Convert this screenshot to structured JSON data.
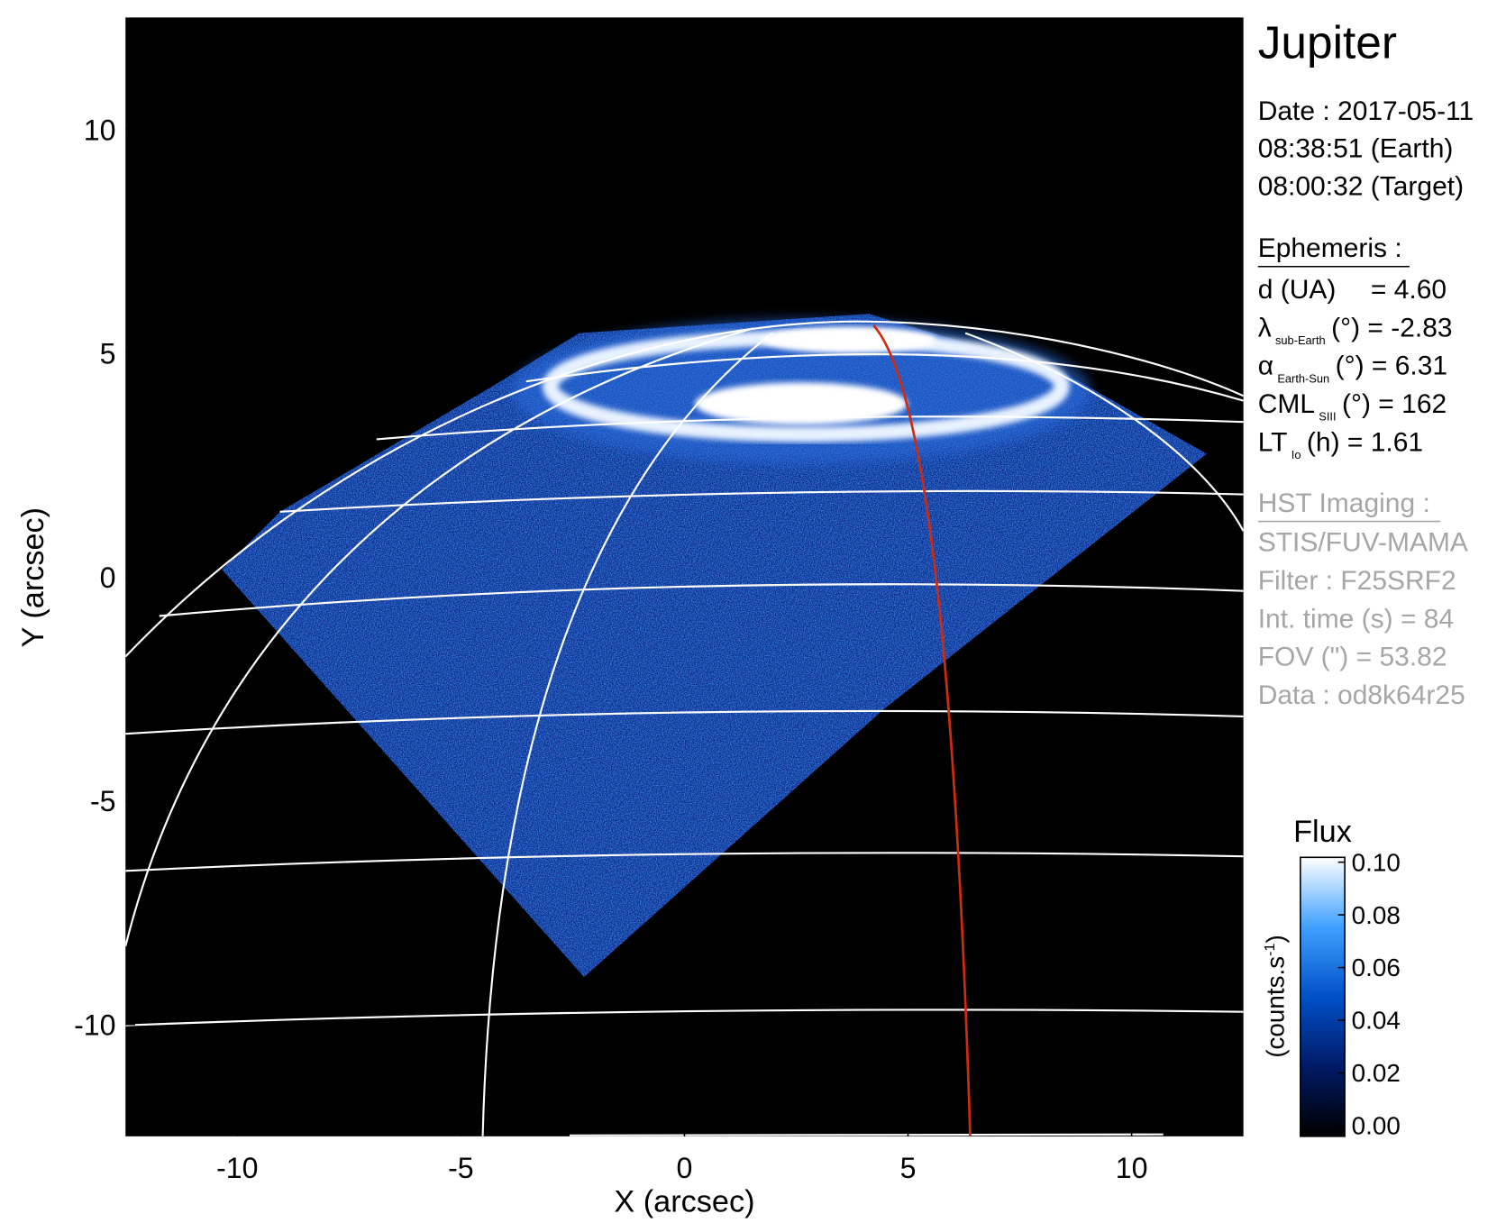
{
  "chart_data": {
    "type": "image",
    "title": "Jupiter",
    "x_label": "X (arcsec)",
    "y_label": "Y (arcsec)",
    "xlim": [
      -12.5,
      12.5
    ],
    "ylim": [
      -12.5,
      12.5
    ],
    "xticks": [
      -10,
      -5,
      0,
      5,
      10
    ],
    "yticks": [
      -10,
      -5,
      0,
      5,
      10
    ],
    "colorbar": {
      "label": "Flux",
      "unit_main": "(counts.s",
      "unit_sup": "-1",
      "unit_end": ")",
      "clim": [
        0,
        0.1
      ],
      "colors": [
        "#000000",
        "#001a66",
        "#0050c8",
        "#3fa0ff",
        "#ffffff"
      ],
      "ticks": [
        {
          "value": 0,
          "label": "0.00"
        },
        {
          "value": 0.02,
          "label": "0.02"
        },
        {
          "value": 0.04,
          "label": "0.04"
        },
        {
          "value": 0.06,
          "label": "0.06"
        },
        {
          "value": 0.08,
          "label": "0.08"
        },
        {
          "value": 0.1,
          "label": "0.10"
        }
      ]
    }
  },
  "info": {
    "date": "Date : 2017-05-11",
    "time_earth": "08:38:51 (Earth)",
    "time_target": "08:00:32 (Target)",
    "ephemeris_title": "Ephemeris :",
    "ephemeris": [
      {
        "main": "d (UA)",
        "rest": "= 4.60"
      },
      {
        "main": "λ",
        "sub": "sub-Earth",
        "rest": "(°) = -2.83"
      },
      {
        "main": "α",
        "sub": "Earth-Sun",
        "rest": "(°) = 6.31"
      },
      {
        "main": "CML",
        "sub": "SIII",
        "rest": "(°) = 162"
      },
      {
        "main": "LT",
        "sub": "Io",
        "rest": "(h) = 1.61"
      }
    ],
    "hst_title": "HST Imaging :",
    "hst": [
      "STIS/FUV-MAMA",
      "Filter : F25SRF2",
      "Int. time (s) = 84",
      "FOV (\") = 53.82",
      "Data : od8k64r25"
    ]
  }
}
